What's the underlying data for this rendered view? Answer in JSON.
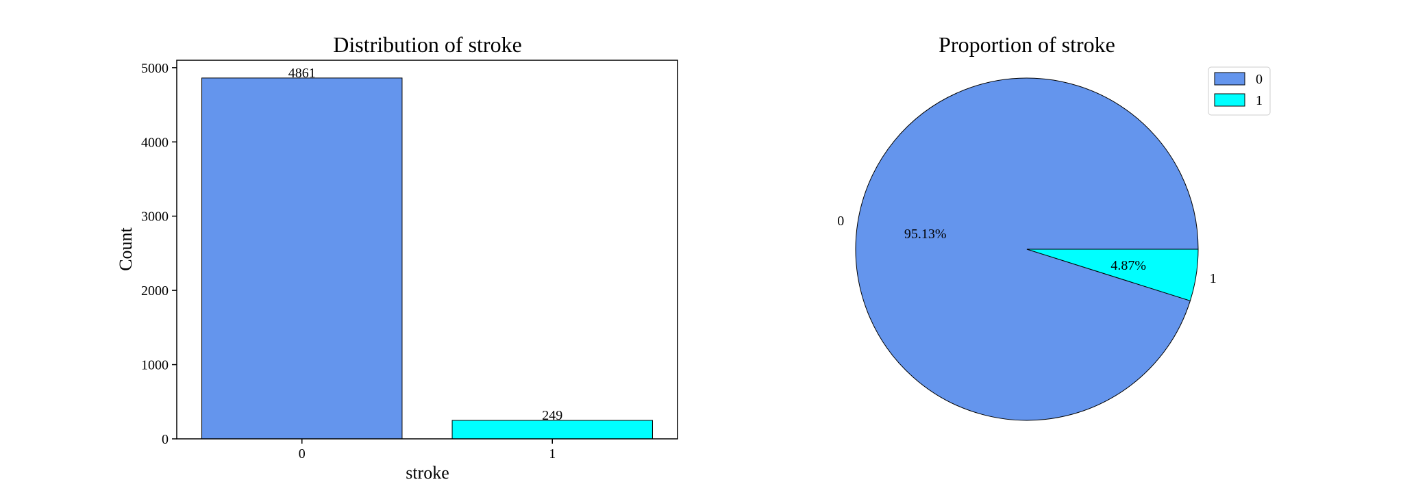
{
  "chart_data": [
    {
      "type": "bar",
      "title": "Distribution of stroke",
      "xlabel": "stroke",
      "ylabel": "Count",
      "categories": [
        "0",
        "1"
      ],
      "values": [
        4861,
        249
      ],
      "value_labels": [
        "4861",
        "249"
      ],
      "colors": [
        "#6495ED",
        "#00FFFF"
      ],
      "ylim": [
        0,
        5100
      ],
      "yticks": [
        0,
        1000,
        2000,
        3000,
        4000,
        5000
      ],
      "ytick_labels": [
        "0",
        "1000",
        "2000",
        "3000",
        "4000",
        "5000"
      ],
      "grid": false
    },
    {
      "type": "pie",
      "title": "Proportion of stroke",
      "labels": [
        "0",
        "1"
      ],
      "values": [
        95.13,
        4.87
      ],
      "pct_labels": [
        "95.13%",
        "4.87%"
      ],
      "colors": [
        "#6495ED",
        "#00FFFF"
      ],
      "legend": {
        "position": "top-right",
        "entries": [
          "0",
          "1"
        ]
      }
    }
  ]
}
